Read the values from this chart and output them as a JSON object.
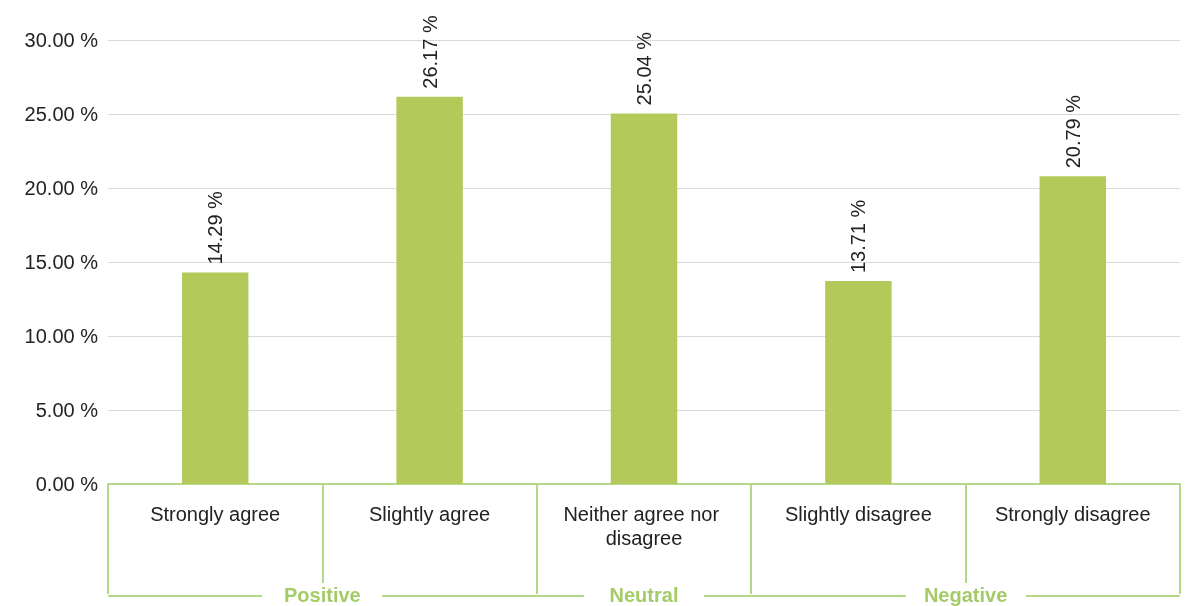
{
  "chart_data": {
    "type": "bar",
    "categories": [
      "Strongly agree",
      "Slightly agree",
      "Neither agree nor disagree",
      "Slightly disagree",
      "Strongly disagree"
    ],
    "values": [
      14.29,
      26.17,
      25.04,
      13.71,
      20.79
    ],
    "value_labels": [
      "14.29 %",
      "26.17 %",
      "25.04 %",
      "13.71 %",
      "20.79 %"
    ],
    "color": "#b3c95a",
    "ylim": [
      0,
      30
    ],
    "yticks": [
      {
        "value": 0,
        "label": "0.00 %"
      },
      {
        "value": 5,
        "label": "5.00 %"
      },
      {
        "value": 10,
        "label": "10.00 %"
      },
      {
        "value": 15,
        "label": "15.00 %"
      },
      {
        "value": 20,
        "label": "20.00 %"
      },
      {
        "value": 25,
        "label": "25.00 %"
      },
      {
        "value": 30,
        "label": "30.00 %"
      }
    ],
    "grid": "y",
    "annotations": [
      "Positive",
      "Neutral",
      "Negative"
    ]
  }
}
